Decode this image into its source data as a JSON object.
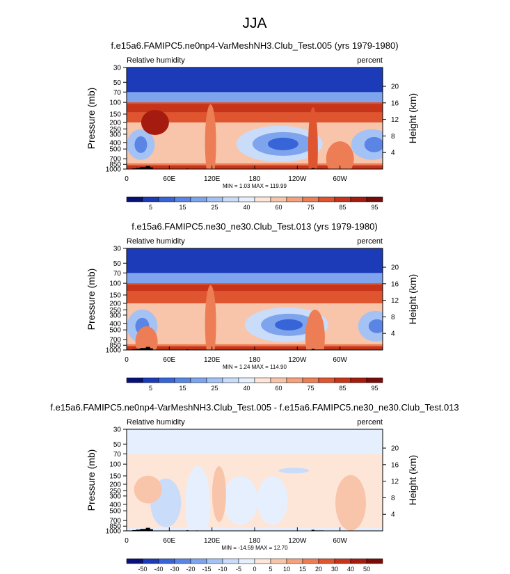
{
  "figure": {
    "title": "JJA"
  },
  "chart_data": [
    {
      "type": "heatmap",
      "title": "f.e15a6.FAMIPC5.ne0np4-VarMeshNH3.Club_Test.005 (yrs 1979-1980)",
      "left_label": "Relative humidity",
      "right_label": "percent",
      "ylabel": "Pressure (mb)",
      "y2label": "Height (km)",
      "x_ticks": [
        "0",
        "60E",
        "120E",
        "180",
        "120W",
        "60W"
      ],
      "x_tick_values": [
        0,
        60,
        120,
        180,
        240,
        300
      ],
      "xlim": [
        0,
        360
      ],
      "y_ticks": [
        "30",
        "50",
        "70",
        "100",
        "150",
        "200",
        "250",
        "300",
        "400",
        "500",
        "700",
        "850",
        "1000"
      ],
      "y_tick_values": [
        30,
        50,
        70,
        100,
        150,
        200,
        250,
        300,
        400,
        500,
        700,
        850,
        1000
      ],
      "ylim": [
        1000,
        30
      ],
      "y2_ticks": [
        "20",
        "16",
        "12",
        "8",
        "4"
      ],
      "y2_tick_values": [
        20,
        16,
        12,
        8,
        4
      ],
      "stats": "MIN =   1.03  MAX = 119.99",
      "colorbar_labels": [
        "5",
        "15",
        "25",
        "40",
        "60",
        "75",
        "85",
        "95"
      ],
      "colorbar_colors": [
        "#08117a",
        "#1b3bb8",
        "#3764d6",
        "#5a85e4",
        "#7ea4ee",
        "#a5c2f5",
        "#c9dcfa",
        "#e6effd",
        "#fde6d8",
        "#f9c5aa",
        "#f4a27e",
        "#ec7d54",
        "#de5530",
        "#c8341a",
        "#a61b0f",
        "#7a0c08"
      ],
      "background_value": "60-75",
      "features": [
        {
          "name": "upper-tropospheric moist band",
          "lon": [
            0,
            360
          ],
          "p": [
            100,
            200
          ],
          "level": "85-95+"
        },
        {
          "name": "dry anomaly",
          "lon": 20,
          "p": 450,
          "level": "25-40"
        },
        {
          "name": "dry anomaly",
          "lon": 215,
          "p": 420,
          "level": "5-25"
        },
        {
          "name": "dry anomaly",
          "lon": 345,
          "p": 430,
          "level": "15-25"
        },
        {
          "name": "moist column",
          "lon": 35,
          "p": [
            150,
            300
          ],
          "level": "95+"
        },
        {
          "name": "moist column",
          "lon": 118,
          "p": [
            150,
            900
          ],
          "level": "75-85"
        },
        {
          "name": "moist column",
          "lon": 262,
          "p": [
            150,
            1000
          ],
          "level": "85-95"
        },
        {
          "name": "boundary-layer moist layer",
          "lon": [
            0,
            360
          ],
          "p": [
            850,
            1000
          ],
          "level": "85-95"
        }
      ]
    },
    {
      "type": "heatmap",
      "title": "f.e15a6.FAMIPC5.ne30_ne30.Club_Test.013 (yrs 1979-1980)",
      "left_label": "Relative humidity",
      "right_label": "percent",
      "ylabel": "Pressure (mb)",
      "y2label": "Height (km)",
      "x_ticks": [
        "0",
        "60E",
        "120E",
        "180",
        "120W",
        "60W"
      ],
      "x_tick_values": [
        0,
        60,
        120,
        180,
        240,
        300
      ],
      "xlim": [
        0,
        360
      ],
      "y_ticks": [
        "30",
        "50",
        "70",
        "100",
        "150",
        "200",
        "250",
        "300",
        "400",
        "500",
        "700",
        "850",
        "1000"
      ],
      "y_tick_values": [
        30,
        50,
        70,
        100,
        150,
        200,
        250,
        300,
        400,
        500,
        700,
        850,
        1000
      ],
      "ylim": [
        1000,
        30
      ],
      "y2_ticks": [
        "20",
        "16",
        "12",
        "8",
        "4"
      ],
      "y2_tick_values": [
        20,
        16,
        12,
        8,
        4
      ],
      "stats": "MIN =   1.24  MAX = 114.90",
      "colorbar_labels": [
        "5",
        "15",
        "25",
        "40",
        "60",
        "75",
        "85",
        "95"
      ],
      "colorbar_colors": [
        "#08117a",
        "#1b3bb8",
        "#3764d6",
        "#5a85e4",
        "#7ea4ee",
        "#a5c2f5",
        "#c9dcfa",
        "#e6effd",
        "#fde6d8",
        "#f9c5aa",
        "#f4a27e",
        "#ec7d54",
        "#de5530",
        "#c8341a",
        "#a61b0f",
        "#7a0c08"
      ],
      "background_value": "60-75",
      "features": [
        {
          "name": "upper-tropospheric moist band",
          "lon": [
            0,
            360
          ],
          "p": [
            100,
            200
          ],
          "level": "85-95"
        },
        {
          "name": "dry anomaly",
          "lon": 22,
          "p": 450,
          "level": "25-40"
        },
        {
          "name": "dry anomaly",
          "lon": 225,
          "p": 420,
          "level": "5-25"
        },
        {
          "name": "dry anomaly",
          "lon": 350,
          "p": 440,
          "level": "15-25"
        },
        {
          "name": "moist column",
          "lon": 118,
          "p": [
            150,
            900
          ],
          "level": "75-85"
        },
        {
          "name": "moist column",
          "lon": 265,
          "p": [
            400,
            1000
          ],
          "level": "75-85"
        },
        {
          "name": "boundary-layer moist layer",
          "lon": [
            0,
            360
          ],
          "p": [
            850,
            1000
          ],
          "level": "85-95"
        }
      ]
    },
    {
      "type": "heatmap",
      "title": "f.e15a6.FAMIPC5.ne0np4-VarMeshNH3.Club_Test.005 - f.e15a6.FAMIPC5.ne30_ne30.Club_Test.013",
      "left_label": "Relative humidity",
      "right_label": "percent",
      "ylabel": "Pressure (mb)",
      "y2label": "Height (km)",
      "x_ticks": [
        "0",
        "60E",
        "120E",
        "180",
        "120W",
        "60W"
      ],
      "x_tick_values": [
        0,
        60,
        120,
        180,
        240,
        300
      ],
      "xlim": [
        0,
        360
      ],
      "y_ticks": [
        "30",
        "50",
        "70",
        "100",
        "150",
        "200",
        "250",
        "300",
        "400",
        "500",
        "700",
        "850",
        "1000"
      ],
      "y_tick_values": [
        30,
        50,
        70,
        100,
        150,
        200,
        250,
        300,
        400,
        500,
        700,
        850,
        1000
      ],
      "ylim": [
        1000,
        30
      ],
      "y2_ticks": [
        "20",
        "16",
        "12",
        "8",
        "4"
      ],
      "y2_tick_values": [
        20,
        16,
        12,
        8,
        4
      ],
      "stats": "MIN = -14.59  MAX =  12.70",
      "colorbar_labels": [
        "-50",
        "-40",
        "-30",
        "-20",
        "-15",
        "-10",
        "-5",
        "0",
        "5",
        "10",
        "15",
        "20",
        "30",
        "40",
        "50"
      ],
      "colorbar_colors": [
        "#08117a",
        "#1b3bb8",
        "#3764d6",
        "#5a85e4",
        "#7ea4ee",
        "#a5c2f5",
        "#c9dcfa",
        "#e6effd",
        "#fde6d8",
        "#f9c5aa",
        "#f4a27e",
        "#ec7d54",
        "#de5530",
        "#c8341a",
        "#a61b0f",
        "#7a0c08"
      ],
      "background_value": "0-5",
      "features": [
        {
          "name": "negative difference",
          "lon": 55,
          "p": [
            250,
            600
          ],
          "level": "-5 to -10"
        },
        {
          "name": "negative difference",
          "lon": 100,
          "p": [
            150,
            1000
          ],
          "level": "0 to -5"
        },
        {
          "name": "positive difference",
          "lon": 30,
          "p": [
            150,
            350
          ],
          "level": "5-10"
        },
        {
          "name": "positive difference",
          "lon": 130,
          "p": [
            150,
            500
          ],
          "level": "5-10"
        },
        {
          "name": "negative difference",
          "lon": 235,
          "p": [
            100,
            150
          ],
          "level": "-5 to -10"
        },
        {
          "name": "positive difference",
          "lon": 315,
          "p": [
            150,
            700
          ],
          "level": "5-10"
        }
      ]
    }
  ]
}
